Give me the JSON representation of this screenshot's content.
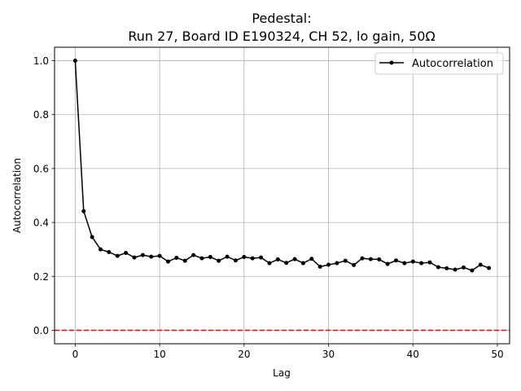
{
  "chart_data": {
    "type": "line",
    "title_line1": "Pedestal:",
    "title_line2": "Run 27, Board ID E190324, CH 52, lo gain, 50Ω",
    "xlabel": "Lag",
    "ylabel": "Autocorrelation",
    "xlim": [
      -2.45,
      51.45
    ],
    "ylim": [
      -0.05,
      1.05
    ],
    "xticks": [
      0,
      10,
      20,
      30,
      40,
      50
    ],
    "xtick_labels": [
      "0",
      "10",
      "20",
      "30",
      "40",
      "50"
    ],
    "yticks": [
      0.0,
      0.2,
      0.4,
      0.6,
      0.8,
      1.0
    ],
    "ytick_labels": [
      "0.0",
      "0.2",
      "0.4",
      "0.6",
      "0.8",
      "1.0"
    ],
    "grid": true,
    "legend_position": "top-right",
    "series": [
      {
        "name": "Autocorrelation",
        "color": "#000000",
        "marker": "circle",
        "x": [
          0,
          1,
          2,
          3,
          4,
          5,
          6,
          7,
          8,
          9,
          10,
          11,
          12,
          13,
          14,
          15,
          16,
          17,
          18,
          19,
          20,
          21,
          22,
          23,
          24,
          25,
          26,
          27,
          28,
          29,
          30,
          31,
          32,
          33,
          34,
          35,
          36,
          37,
          38,
          39,
          40,
          41,
          42,
          43,
          44,
          45,
          46,
          47,
          48,
          49
        ],
        "y": [
          1.0,
          0.442,
          0.346,
          0.3,
          0.29,
          0.276,
          0.287,
          0.27,
          0.279,
          0.273,
          0.276,
          0.255,
          0.269,
          0.258,
          0.279,
          0.267,
          0.272,
          0.258,
          0.273,
          0.259,
          0.272,
          0.267,
          0.27,
          0.249,
          0.263,
          0.25,
          0.264,
          0.249,
          0.265,
          0.236,
          0.243,
          0.249,
          0.258,
          0.242,
          0.267,
          0.264,
          0.263,
          0.246,
          0.259,
          0.249,
          0.255,
          0.249,
          0.252,
          0.234,
          0.23,
          0.225,
          0.233,
          0.222,
          0.243,
          0.231
        ]
      }
    ],
    "reference_line": {
      "y": 0.0,
      "color": "#ff0000",
      "style": "dashed"
    }
  }
}
